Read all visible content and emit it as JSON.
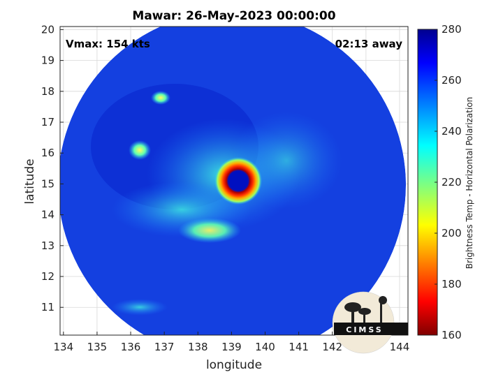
{
  "chart_data": {
    "type": "heatmap",
    "title": "Mawar: 26-May-2023 00:00:00",
    "xlabel": "longitude",
    "ylabel": "latitude",
    "xlim": [
      133.9,
      144.25
    ],
    "ylim": [
      10.1,
      20.1
    ],
    "x_ticks": [
      134,
      135,
      136,
      137,
      138,
      139,
      140,
      141,
      142,
      143,
      144
    ],
    "y_ticks": [
      11,
      12,
      13,
      14,
      15,
      16,
      17,
      18,
      19,
      20
    ],
    "grid": true,
    "colorbar": {
      "label": "Brightness Temp - Horizontal Polarization",
      "range": [
        160,
        280
      ],
      "ticks": [
        160,
        180,
        200,
        220,
        240,
        260,
        280
      ],
      "colormap": "jet"
    },
    "annotations": {
      "vmax": "Vmax: 154 kts",
      "time_away": "02:13 away"
    },
    "storm_center": {
      "lon": 139.2,
      "lat": 15.1
    },
    "swath_radius_deg": 5.15,
    "features": [
      {
        "name": "eye",
        "lon": 139.2,
        "lat": 15.1,
        "value": 262
      },
      {
        "name": "eyewall",
        "lon": 139.2,
        "lat": 15.1,
        "value": 172
      },
      {
        "name": "band",
        "lon": 136.9,
        "lat": 17.8,
        "value": 222
      },
      {
        "name": "band",
        "lon": 136.4,
        "lat": 16.1,
        "value": 218
      },
      {
        "name": "band",
        "lon": 138.6,
        "lat": 13.3,
        "value": 212
      }
    ],
    "background_value": 263
  },
  "logo": {
    "text": "CIMSS"
  }
}
